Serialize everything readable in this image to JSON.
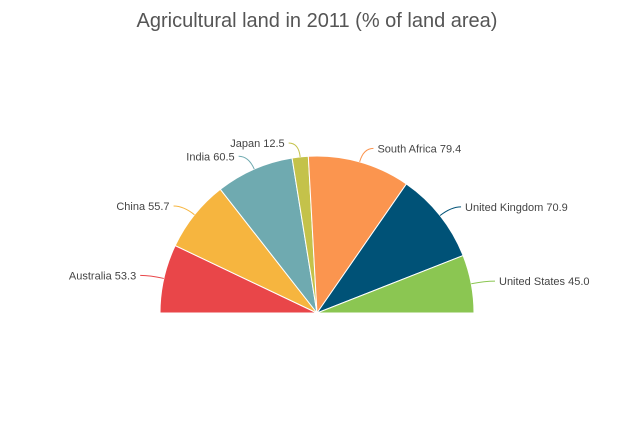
{
  "chart_data": {
    "type": "pie",
    "variant": "semi-circle",
    "title": "Agricultural land in 2011 (% of land area)",
    "categories": [
      "Australia",
      "China",
      "India",
      "Japan",
      "South Africa",
      "United Kingdom",
      "United States"
    ],
    "values": [
      53.3,
      55.7,
      60.5,
      12.5,
      79.4,
      70.9,
      45.0
    ],
    "labels": [
      "Australia 53.3",
      "China 55.7",
      "India 60.5",
      "Japan 12.5",
      "South Africa 79.4",
      "United Kingdom 70.9",
      "United States 45.0"
    ],
    "colors": [
      "#e94649",
      "#f6b53f",
      "#6faab0",
      "#c4c24a",
      "#fb954f",
      "#005277",
      "#8bc652"
    ],
    "start_angle": 270,
    "end_angle": 90,
    "legend": "none",
    "data_labels": "outside"
  }
}
